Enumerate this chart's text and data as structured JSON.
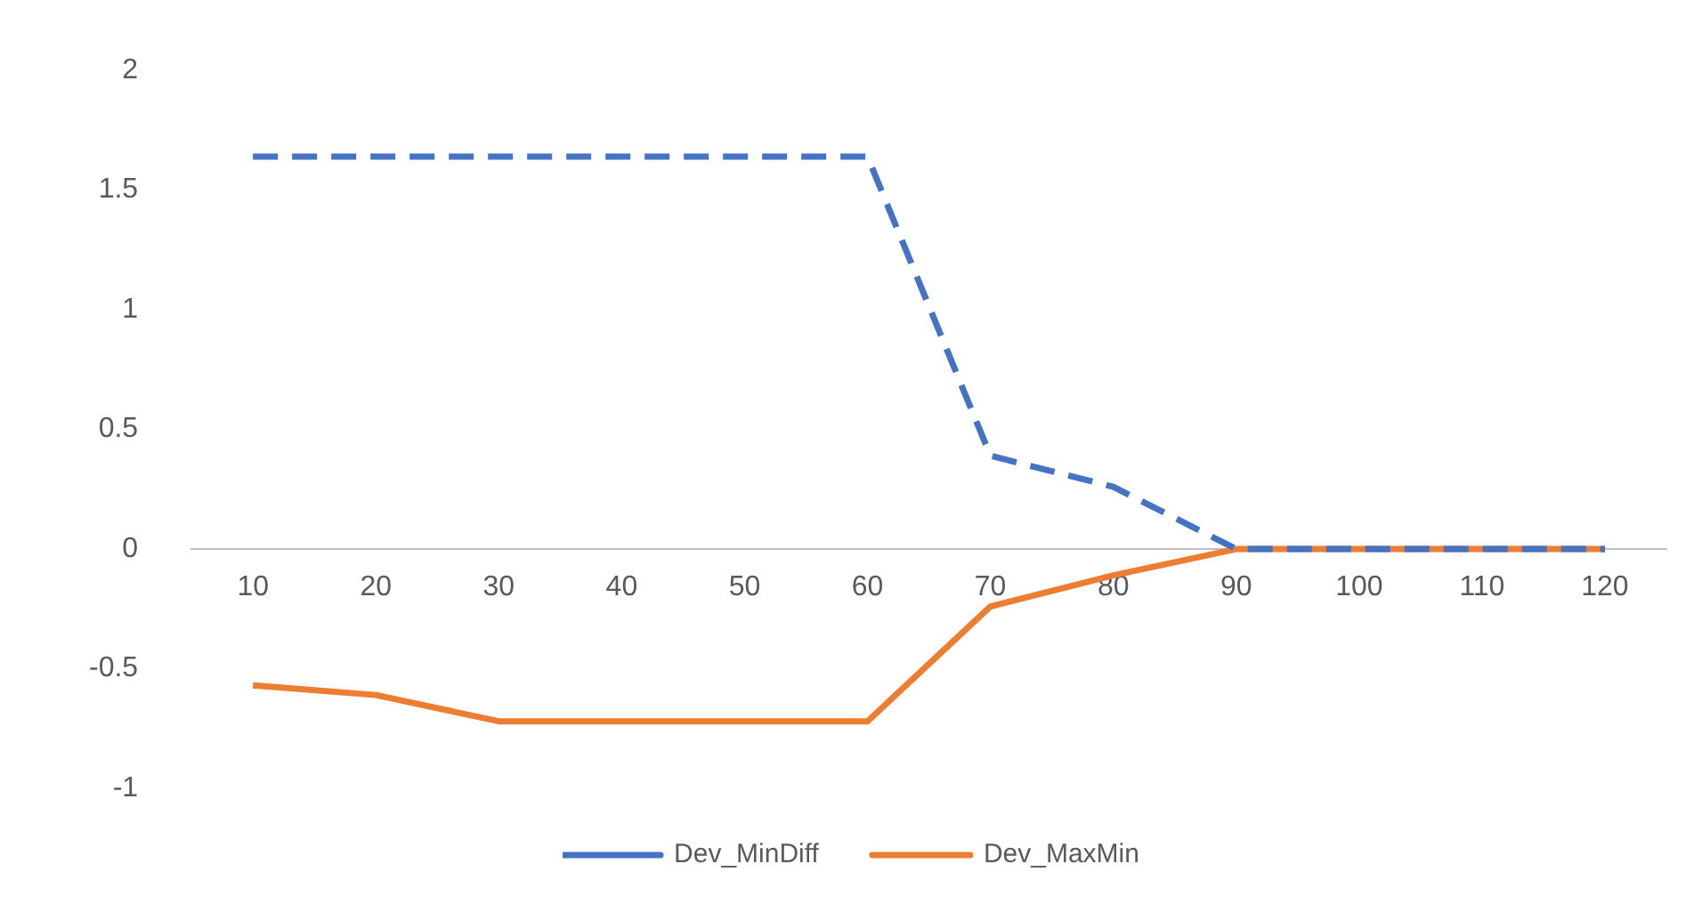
{
  "chart_data": {
    "type": "line",
    "categories": [
      "10",
      "20",
      "30",
      "40",
      "50",
      "60",
      "70",
      "80",
      "90",
      "100",
      "110",
      "120"
    ],
    "series": [
      {
        "name": "Dev_MinDiff",
        "color": "#4472c4",
        "line_style": "dashed",
        "values": [
          1.64,
          1.64,
          1.64,
          1.64,
          1.64,
          1.64,
          0.39,
          0.26,
          0,
          0,
          0,
          0
        ]
      },
      {
        "name": "Dev_MaxMin",
        "color": "#ed7d31",
        "line_style": "solid",
        "values": [
          -0.57,
          -0.61,
          -0.72,
          -0.72,
          -0.72,
          -0.72,
          -0.24,
          -0.11,
          0,
          0,
          0,
          0
        ]
      }
    ],
    "ylim": [
      -1,
      2
    ],
    "yticks": [
      -1,
      -0.5,
      0,
      0.5,
      1,
      1.5,
      2
    ],
    "grid": false,
    "legend": "bottom",
    "marker": "none"
  }
}
